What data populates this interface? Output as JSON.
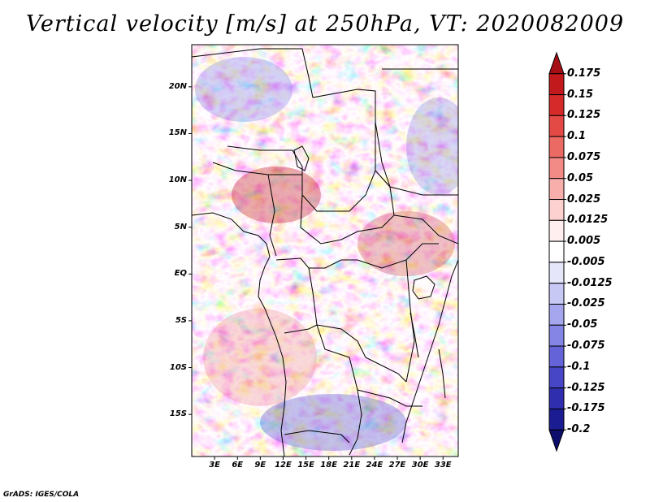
{
  "title": "Vertical velocity [m/s] at 250hPa, VT: 2020082009",
  "credit": "GrADS: IGES/COLA",
  "map": {
    "lon_range": [
      0,
      35
    ],
    "lat_range": [
      -19.5,
      24.5
    ],
    "lat_labels": [
      {
        "lat": 20,
        "text": "20N"
      },
      {
        "lat": 15,
        "text": "15N"
      },
      {
        "lat": 10,
        "text": "10N"
      },
      {
        "lat": 5,
        "text": "5N"
      },
      {
        "lat": 0,
        "text": "EQ"
      },
      {
        "lat": -5,
        "text": "5S"
      },
      {
        "lat": -10,
        "text": "10S"
      },
      {
        "lat": -15,
        "text": "15S"
      }
    ],
    "lon_labels": [
      {
        "lon": 3,
        "text": "3E"
      },
      {
        "lon": 6,
        "text": "6E"
      },
      {
        "lon": 9,
        "text": "9E"
      },
      {
        "lon": 12,
        "text": "12E"
      },
      {
        "lon": 15,
        "text": "15E"
      },
      {
        "lon": 18,
        "text": "18E"
      },
      {
        "lon": 21,
        "text": "21E"
      },
      {
        "lon": 24,
        "text": "24E"
      },
      {
        "lon": 27,
        "text": "27E"
      },
      {
        "lon": 30,
        "text": "30E"
      },
      {
        "lon": 33,
        "text": "33E"
      }
    ]
  },
  "colorbar": {
    "levels": [
      "0.175",
      "0.15",
      "0.125",
      "0.1",
      "0.075",
      "0.05",
      "0.025",
      "0.0125",
      "0.005",
      "-0.005",
      "-0.0125",
      "-0.025",
      "-0.05",
      "-0.075",
      "-0.1",
      "-0.125",
      "-0.175",
      "-0.2"
    ],
    "colors": [
      "#a50f15",
      "#c2191d",
      "#d62a2a",
      "#e34a45",
      "#ec6a64",
      "#f28b86",
      "#f8aeab",
      "#fcd1cf",
      "#fff0ef",
      "#ffffff",
      "#e6e6fb",
      "#c8c8f5",
      "#a6a6ef",
      "#8585e6",
      "#6464d8",
      "#4646c6",
      "#2e2eae",
      "#1c1c92",
      "#0d0d6e"
    ]
  }
}
